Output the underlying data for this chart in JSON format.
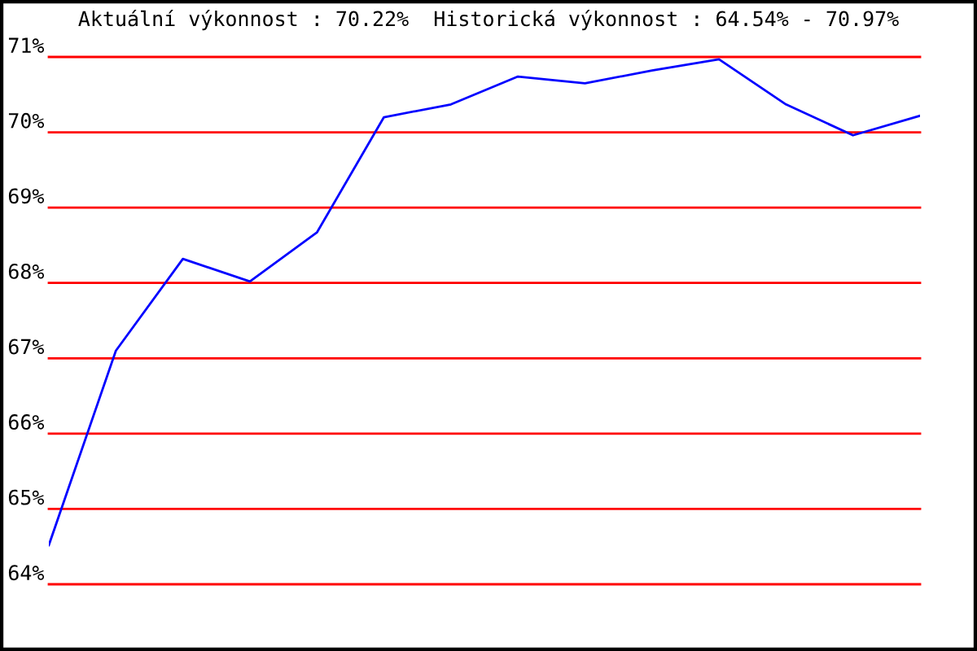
{
  "chart_data": {
    "type": "line",
    "title": "Aktuální výkonnost : 70.22%  Historická výkonnost : 64.54% - 70.97%",
    "categories": [
      null,
      null,
      null,
      null,
      null,
      null,
      null,
      null,
      null,
      null,
      null,
      null,
      null,
      null
    ],
    "series": [
      {
        "color": "#0000ff",
        "values": [
          64.52,
          67.1,
          68.32,
          68.02,
          68.67,
          70.2,
          70.37,
          70.74,
          70.65,
          70.82,
          70.97,
          70.37,
          69.96,
          70.22
        ]
      }
    ],
    "ylim": [
      64,
      71
    ],
    "yticks": [
      {
        "value": 64,
        "label": "64%"
      },
      {
        "value": 65,
        "label": "65%"
      },
      {
        "value": 66,
        "label": "66%"
      },
      {
        "value": 67,
        "label": "67%"
      },
      {
        "value": 68,
        "label": "68%"
      },
      {
        "value": 69,
        "label": "69%"
      },
      {
        "value": 70,
        "label": "70%"
      },
      {
        "value": 71,
        "label": "71%"
      }
    ],
    "grid": "y",
    "tick_labels": "y",
    "marker": "none",
    "line_style": "solid",
    "legend": false
  }
}
